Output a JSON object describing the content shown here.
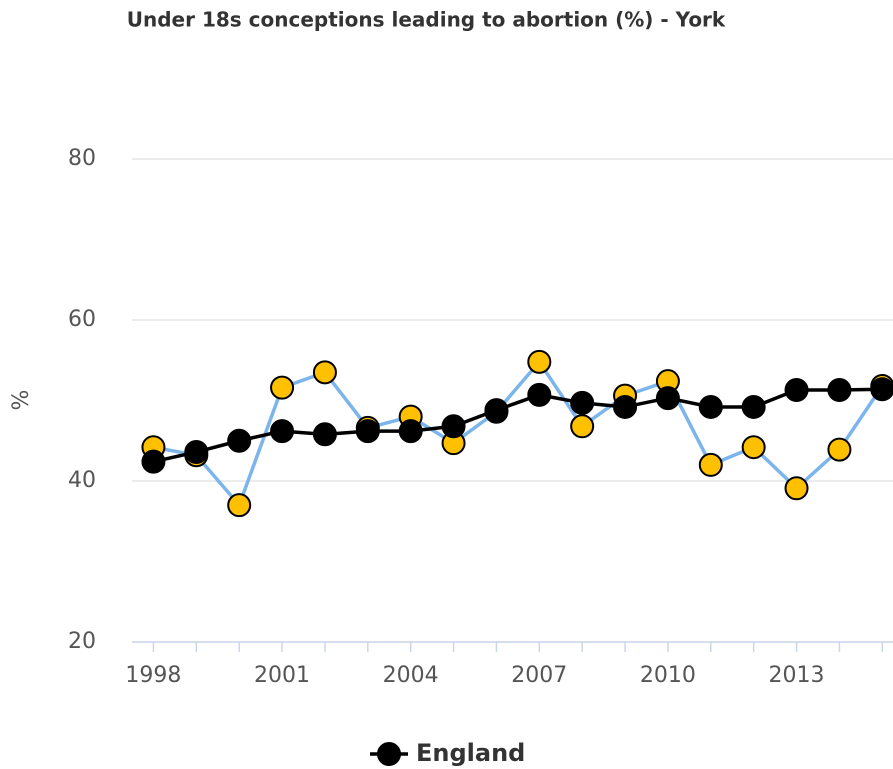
{
  "chart_data": {
    "type": "line",
    "title": "Under 18s conceptions leading to abortion (%) - York",
    "y_label": "%",
    "x": [
      1998,
      1999,
      2000,
      2001,
      2002,
      2003,
      2004,
      2005,
      2006,
      2007,
      2008,
      2009,
      2010,
      2011,
      2012,
      2013,
      2014,
      2015
    ],
    "xlim": [
      1997.5,
      2015.25
    ],
    "xticks": [
      1998,
      2001,
      2004,
      2007,
      2010,
      2013
    ],
    "ylim": [
      20,
      90
    ],
    "yticks": [
      20,
      40,
      60,
      80
    ],
    "grid": true,
    "legend": "bottom",
    "series": [
      {
        "color": "#7cb5ec",
        "marker_color": "#ffc000",
        "values": [
          44.2,
          43.2,
          37.0,
          51.6,
          53.5,
          46.6,
          48.0,
          44.7,
          48.6,
          54.8,
          46.8,
          50.6,
          52.4,
          42.0,
          44.2,
          39.1,
          43.9,
          51.8
        ]
      },
      {
        "name": "England",
        "color": "#000000",
        "marker_color": "#000000",
        "values": [
          42.4,
          43.6,
          45.0,
          46.2,
          45.8,
          46.2,
          46.2,
          46.8,
          48.8,
          50.7,
          49.7,
          49.2,
          50.3,
          49.2,
          49.2,
          51.3,
          51.3,
          51.4
        ]
      }
    ]
  }
}
